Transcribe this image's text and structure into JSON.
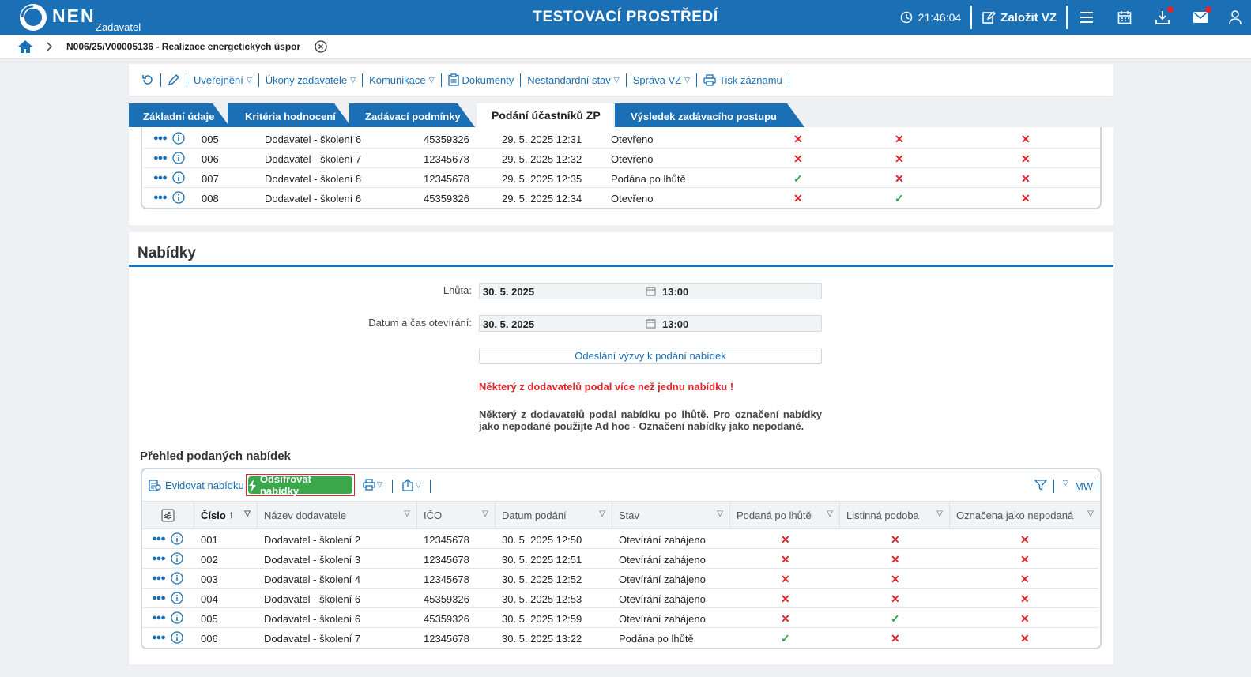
{
  "header": {
    "logo_text": "NEN",
    "logo_sub": "Zadavatel",
    "environment": "TESTOVACÍ PROSTŘEDÍ",
    "time": "21:46:04",
    "new_vz_label": "Založit VZ"
  },
  "breadcrumb": {
    "title": "N006/25/V00005136 - Realizace energetických úspor"
  },
  "actions": [
    {
      "label": "Uveřejnění"
    },
    {
      "label": "Úkony zadavatele"
    },
    {
      "label": "Komunikace"
    },
    {
      "label": "Dokumenty"
    },
    {
      "label": "Nestandardní stav"
    },
    {
      "label": "Správa VZ"
    },
    {
      "label": "Tisk záznamu"
    }
  ],
  "tabs": [
    {
      "label": "Základní údaje"
    },
    {
      "label": "Kritéria hodnocení"
    },
    {
      "label": "Zadávací podmínky"
    },
    {
      "label": "Podání účastníků ZP"
    },
    {
      "label": "Výsledek zadávacího postupu"
    }
  ],
  "upper_rows": [
    {
      "num": "005",
      "name": "Dodavatel - školení 6",
      "ico": "45359326",
      "date": "29. 5. 2025 12:31",
      "state": "Otevřeno",
      "c1": "x",
      "c2": "x",
      "c3": "x"
    },
    {
      "num": "006",
      "name": "Dodavatel - školení 7",
      "ico": "12345678",
      "date": "29. 5. 2025 12:32",
      "state": "Otevřeno",
      "c1": "x",
      "c2": "x",
      "c3": "x"
    },
    {
      "num": "007",
      "name": "Dodavatel - školení 8",
      "ico": "12345678",
      "date": "29. 5. 2025 12:35",
      "state": "Podána po lhůtě",
      "c1": "ok",
      "c2": "x",
      "c3": "x"
    },
    {
      "num": "008",
      "name": "Dodavatel - školení 6",
      "ico": "45359326",
      "date": "29. 5. 2025 12:34",
      "state": "Otevřeno",
      "c1": "x",
      "c2": "ok",
      "c3": "x"
    }
  ],
  "nabidky": {
    "title": "Nabídky",
    "lhuta_label": "Lhůta:",
    "lhuta_date": "30. 5. 2025",
    "lhuta_time": "13:00",
    "otevirani_label": "Datum a čas otevírání:",
    "otevirani_date": "30. 5. 2025",
    "otevirani_time": "13:00",
    "send_button": "Odeslání výzvy k podání nabídek",
    "warning": "Některý z dodavatelů podal více než jednu nabídku !",
    "note": "Některý z dodavatelů podal nabídku po lhůtě. Pro označení nabídky jako nepodané použijte Ad hoc - Označení nabídky jako nepodané.",
    "overview_title": "Přehled podaných nabídek",
    "evidovat_label": "Evidovat nabídku",
    "decrypt_label": "Odšifrovat nabídky",
    "mw_label": "MW",
    "columns": [
      "Číslo",
      "Název dodavatele",
      "IČO",
      "Datum podání",
      "Stav",
      "Podaná po lhůtě",
      "Listinná podoba",
      "Označena jako nepodaná"
    ],
    "rows": [
      {
        "num": "001",
        "name": "Dodavatel - školení 2",
        "ico": "12345678",
        "date": "30. 5. 2025 12:50",
        "state": "Otevírání zahájeno",
        "c1": "x",
        "c2": "x",
        "c3": "x"
      },
      {
        "num": "002",
        "name": "Dodavatel - školení 3",
        "ico": "12345678",
        "date": "30. 5. 2025 12:51",
        "state": "Otevírání zahájeno",
        "c1": "x",
        "c2": "x",
        "c3": "x"
      },
      {
        "num": "003",
        "name": "Dodavatel - školení 4",
        "ico": "12345678",
        "date": "30. 5. 2025 12:52",
        "state": "Otevírání zahájeno",
        "c1": "x",
        "c2": "x",
        "c3": "x"
      },
      {
        "num": "004",
        "name": "Dodavatel - školení 6",
        "ico": "45359326",
        "date": "30. 5. 2025 12:53",
        "state": "Otevírání zahájeno",
        "c1": "x",
        "c2": "x",
        "c3": "x"
      },
      {
        "num": "005",
        "name": "Dodavatel - školení 6",
        "ico": "45359326",
        "date": "30. 5. 2025 12:59",
        "state": "Otevírání zahájeno",
        "c1": "x",
        "c2": "ok",
        "c3": "x"
      },
      {
        "num": "006",
        "name": "Dodavatel - školení 7",
        "ico": "12345678",
        "date": "30. 5. 2025 13:22",
        "state": "Podána po lhůtě",
        "c1": "ok",
        "c2": "x",
        "c3": "x"
      }
    ]
  },
  "colors": {
    "primary": "#1b6fb5",
    "danger": "#e0252c",
    "success": "#3aa74a"
  }
}
